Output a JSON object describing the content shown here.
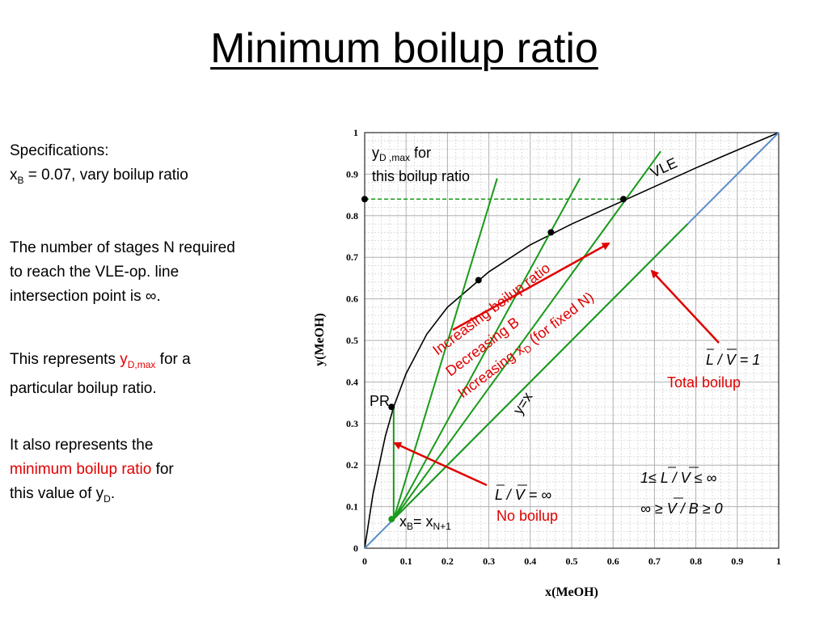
{
  "slide": {
    "title": "Minimum boilup ratio",
    "spec_line1": "Specifications:",
    "spec_xb_sym": "x",
    "spec_xb_sub": "B",
    "spec_xb_rest": " = 0.07, vary boilup ratio",
    "p2_line1": "The number of stages N required",
    "p2_line2": "to reach the VLE-op. line",
    "p2_line3": "intersection point is ∞.",
    "p3_text1": "This represents ",
    "p3_sym": "y",
    "p3_sub": "D,max",
    "p3_text2": " for a",
    "p3_line2": "particular boilup ratio.",
    "p4_line1": "It also represents the",
    "p4_red": "minimum boilup ratio",
    "p4_rest": " for",
    "p4_line3a": "this value of y",
    "p4_line3sub": "D",
    "p4_line3b": "."
  },
  "chart_data": {
    "type": "line",
    "xlabel": "x(MeOH)",
    "ylabel": "y(MeOH)",
    "xlim": [
      0,
      1
    ],
    "ylim": [
      0,
      1
    ],
    "xticks": [
      "0",
      "0.1",
      "0.2",
      "0.3",
      "0.4",
      "0.5",
      "0.6",
      "0.7",
      "0.8",
      "0.9",
      "1"
    ],
    "yticks": [
      "0",
      "0.1",
      "0.2",
      "0.3",
      "0.4",
      "0.5",
      "0.6",
      "0.7",
      "0.8",
      "0.9",
      "1"
    ],
    "grid": true,
    "series": [
      {
        "name": "VLE",
        "color": "#000000",
        "x": [
          0,
          0.02,
          0.05,
          0.07,
          0.1,
          0.15,
          0.2,
          0.3,
          0.4,
          0.5,
          0.6,
          0.7,
          0.8,
          0.9,
          1.0
        ],
        "y": [
          0,
          0.13,
          0.27,
          0.34,
          0.42,
          0.515,
          0.58,
          0.665,
          0.73,
          0.78,
          0.825,
          0.87,
          0.915,
          0.958,
          1.0
        ]
      },
      {
        "name": "y=x",
        "color": "#5b8fc9",
        "x": [
          0,
          1
        ],
        "y": [
          0,
          1
        ]
      }
    ],
    "operating_lines": [
      {
        "x": [
          0.07,
          0.07
        ],
        "y": [
          0.07,
          0.34
        ]
      },
      {
        "x": [
          0.07,
          0.32
        ],
        "y": [
          0.07,
          0.89
        ]
      },
      {
        "x": [
          0.07,
          0.52
        ],
        "y": [
          0.07,
          0.89
        ]
      },
      {
        "x": [
          0.07,
          0.715
        ],
        "y": [
          0.07,
          0.955
        ]
      },
      {
        "x": [
          0.07,
          0.78
        ],
        "y": [
          0.07,
          0.78
        ]
      }
    ],
    "ymax_line": {
      "x": [
        0,
        0.625
      ],
      "y": [
        0.84,
        0.84
      ]
    },
    "points": [
      {
        "x": 0,
        "y": 0.84
      },
      {
        "x": 0.625,
        "y": 0.84
      },
      {
        "x": 0.45,
        "y": 0.76
      },
      {
        "x": 0.275,
        "y": 0.645
      },
      {
        "x": 0.065,
        "y": 0.34
      },
      {
        "x": 0.065,
        "y": 0.07
      }
    ],
    "annotations": {
      "ydmax_sym": "y",
      "ydmax_sub": "D ,max",
      "ydmax_for": " for",
      "ydmax_line2": "this boilup ratio",
      "vle": "VLE",
      "pr": "PR",
      "yx": "y=x",
      "xb_sym": "x",
      "xb_sub": "B",
      "xb_eq": "= x",
      "xb_sub2": "N+1",
      "increasing_boilup": "Increasing boilup ratio",
      "decreasing_b": "Decreasing B",
      "increasing_xd_pre": "Increasing x",
      "increasing_xd_sub": "D",
      "increasing_xd_post": " (for fixed N)",
      "lv1": "L / V  = 1",
      "total_boilup": "Total boilup",
      "lv_inf": "L / V  = ∞",
      "no_boilup": "No boilup",
      "range1": "1≤ L / V  ≤ ∞",
      "range2": "∞ ≥ V / B ≥ 0"
    }
  }
}
